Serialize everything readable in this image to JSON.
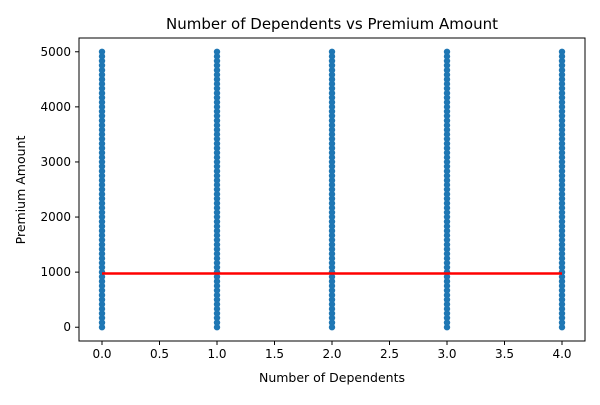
{
  "chart_data": {
    "type": "scatter",
    "title": "Number of Dependents vs Premium Amount",
    "xlabel": "Number of Dependents",
    "ylabel": "Premium Amount",
    "xlim": [
      -0.2,
      4.2
    ],
    "ylim": [
      -250,
      5250
    ],
    "x_ticks": [
      0.0,
      0.5,
      1.0,
      1.5,
      2.0,
      2.5,
      3.0,
      3.5,
      4.0
    ],
    "x_tick_labels": [
      "0.0",
      "0.5",
      "1.0",
      "1.5",
      "2.0",
      "2.5",
      "3.0",
      "3.5",
      "4.0"
    ],
    "y_ticks": [
      0,
      1000,
      2000,
      3000,
      4000,
      5000
    ],
    "y_tick_labels": [
      "0",
      "1000",
      "2000",
      "3000",
      "4000",
      "5000"
    ],
    "grid": false,
    "series": [
      {
        "kind": "scatter",
        "color": "#1f77b4",
        "x_values": [
          0,
          1,
          2,
          3,
          4
        ],
        "y_range_per_x": [
          [
            0,
            5000
          ],
          [
            0,
            5000
          ],
          [
            0,
            5000
          ],
          [
            0,
            5000
          ],
          [
            0,
            5000
          ]
        ]
      },
      {
        "kind": "line",
        "color": "#ff0000",
        "x": [
          0,
          4
        ],
        "y": [
          975,
          975
        ]
      }
    ]
  }
}
